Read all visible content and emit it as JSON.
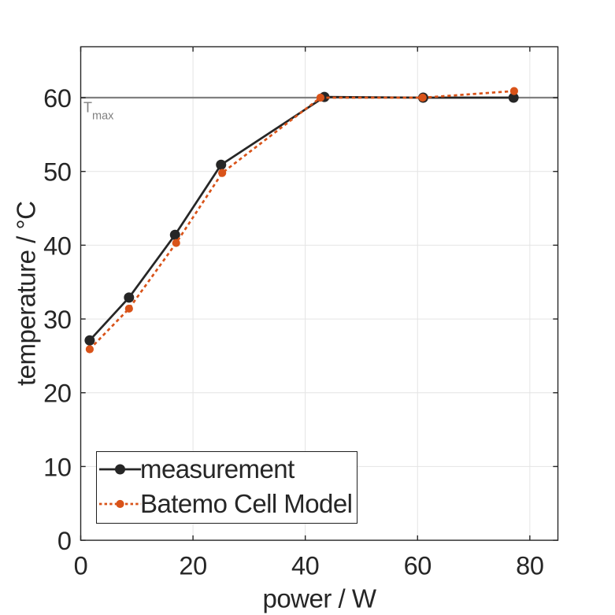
{
  "figure": {
    "background_color": "#ffffff",
    "text_color": "#262626"
  },
  "chart_data": {
    "type": "line",
    "title": "",
    "xlabel": "power / W",
    "ylabel": "temperature / °C",
    "xlim": [
      0,
      85
    ],
    "ylim": [
      0,
      66.9
    ],
    "xticks": [
      "0",
      "20",
      "40",
      "60",
      "80"
    ],
    "yticks": [
      "0",
      "10",
      "20",
      "30",
      "40",
      "50",
      "60"
    ],
    "grid": true,
    "grid_color": "#e4e4e4",
    "axis_color": "#262626",
    "legend_position": "bottom-left",
    "series": [
      {
        "name": "measurement",
        "color": "#262626",
        "line_style": "solid",
        "marker": "circle",
        "marker_size": 6.5,
        "x": [
          1.6,
          8.6,
          16.8,
          25.0,
          43.4,
          61.0,
          77.1
        ],
        "y": [
          27.1,
          32.9,
          41.4,
          50.9,
          60.1,
          60.0,
          60.0
        ]
      },
      {
        "name": "Batemo Cell Model",
        "color": "#d95319",
        "line_style": "dotted",
        "marker": "circle",
        "marker_size": 5.1,
        "x": [
          1.6,
          8.6,
          17.0,
          25.2,
          42.7,
          60.9,
          77.2
        ],
        "y": [
          25.9,
          31.4,
          40.3,
          49.8,
          60.0,
          60.0,
          60.9
        ]
      }
    ],
    "annotation": {
      "type": "horizontal-line",
      "y": 60,
      "label_main": "T",
      "label_sub": "max",
      "color": "#808080"
    }
  }
}
